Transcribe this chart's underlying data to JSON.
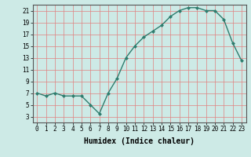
{
  "x": [
    0,
    1,
    2,
    3,
    4,
    5,
    6,
    7,
    8,
    9,
    10,
    11,
    12,
    13,
    14,
    15,
    16,
    17,
    18,
    19,
    20,
    21,
    22,
    23
  ],
  "y": [
    7,
    6.5,
    7,
    6.5,
    6.5,
    6.5,
    5,
    3.5,
    7,
    9.5,
    13,
    15,
    16.5,
    17.5,
    18.5,
    20,
    21,
    21.5,
    21.5,
    21,
    21,
    19.5,
    15.5,
    12.5
  ],
  "line_color": "#2e7d6e",
  "marker": "D",
  "marker_size": 2.0,
  "line_width": 1.0,
  "xlabel": "Humidex (Indice chaleur)",
  "xlabel_fontsize": 7,
  "xlabel_fontweight": "bold",
  "xlim": [
    -0.5,
    23.5
  ],
  "ylim": [
    2,
    22
  ],
  "yticks": [
    3,
    5,
    7,
    9,
    11,
    13,
    15,
    17,
    19,
    21
  ],
  "xtick_labels": [
    "0",
    "1",
    "2",
    "3",
    "4",
    "5",
    "6",
    "7",
    "8",
    "9",
    "10",
    "11",
    "12",
    "13",
    "14",
    "15",
    "16",
    "17",
    "18",
    "19",
    "20",
    "21",
    "22",
    "23"
  ],
  "bg_color": "#cdeae6",
  "grid_color": "#e08080",
  "grid_linewidth": 0.5,
  "tick_fontsize": 5.5,
  "spine_color": "#555555"
}
